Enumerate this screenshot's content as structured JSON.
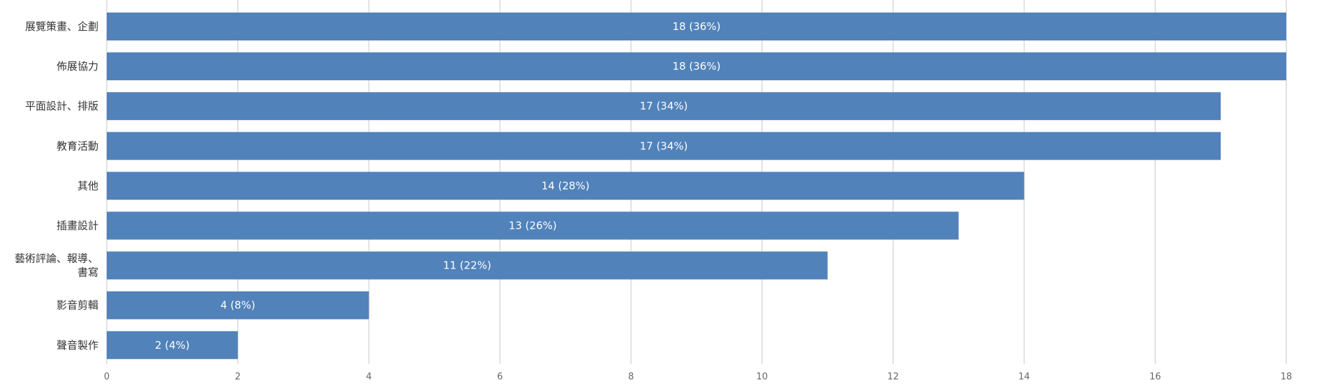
{
  "chart_data": {
    "type": "bar",
    "orientation": "horizontal",
    "title": "",
    "xlabel": "",
    "ylabel": "",
    "categories": [
      [
        "展覽策畫、企劃"
      ],
      [
        "佈展協力"
      ],
      [
        "平面設計、排版"
      ],
      [
        "教育活動"
      ],
      [
        "其他"
      ],
      [
        "插畫設計"
      ],
      [
        "藝術評論、報導、",
        "書寫"
      ],
      [
        "影音剪輯"
      ],
      [
        "聲音製作"
      ]
    ],
    "values": [
      18,
      18,
      17,
      17,
      14,
      13,
      11,
      4,
      2
    ],
    "data_labels": [
      "18 (36%)",
      "18 (36%)",
      "17 (34%)",
      "17 (34%)",
      "14 (28%)",
      "13 (26%)",
      "11 (22%)",
      "4 (8%)",
      "2 (4%)"
    ],
    "xlim": [
      0,
      18
    ],
    "xticks": [
      0,
      2,
      4,
      6,
      8,
      10,
      12,
      14,
      16,
      18
    ],
    "grid": true,
    "bar_color": "#5182ba",
    "legend": "none"
  }
}
